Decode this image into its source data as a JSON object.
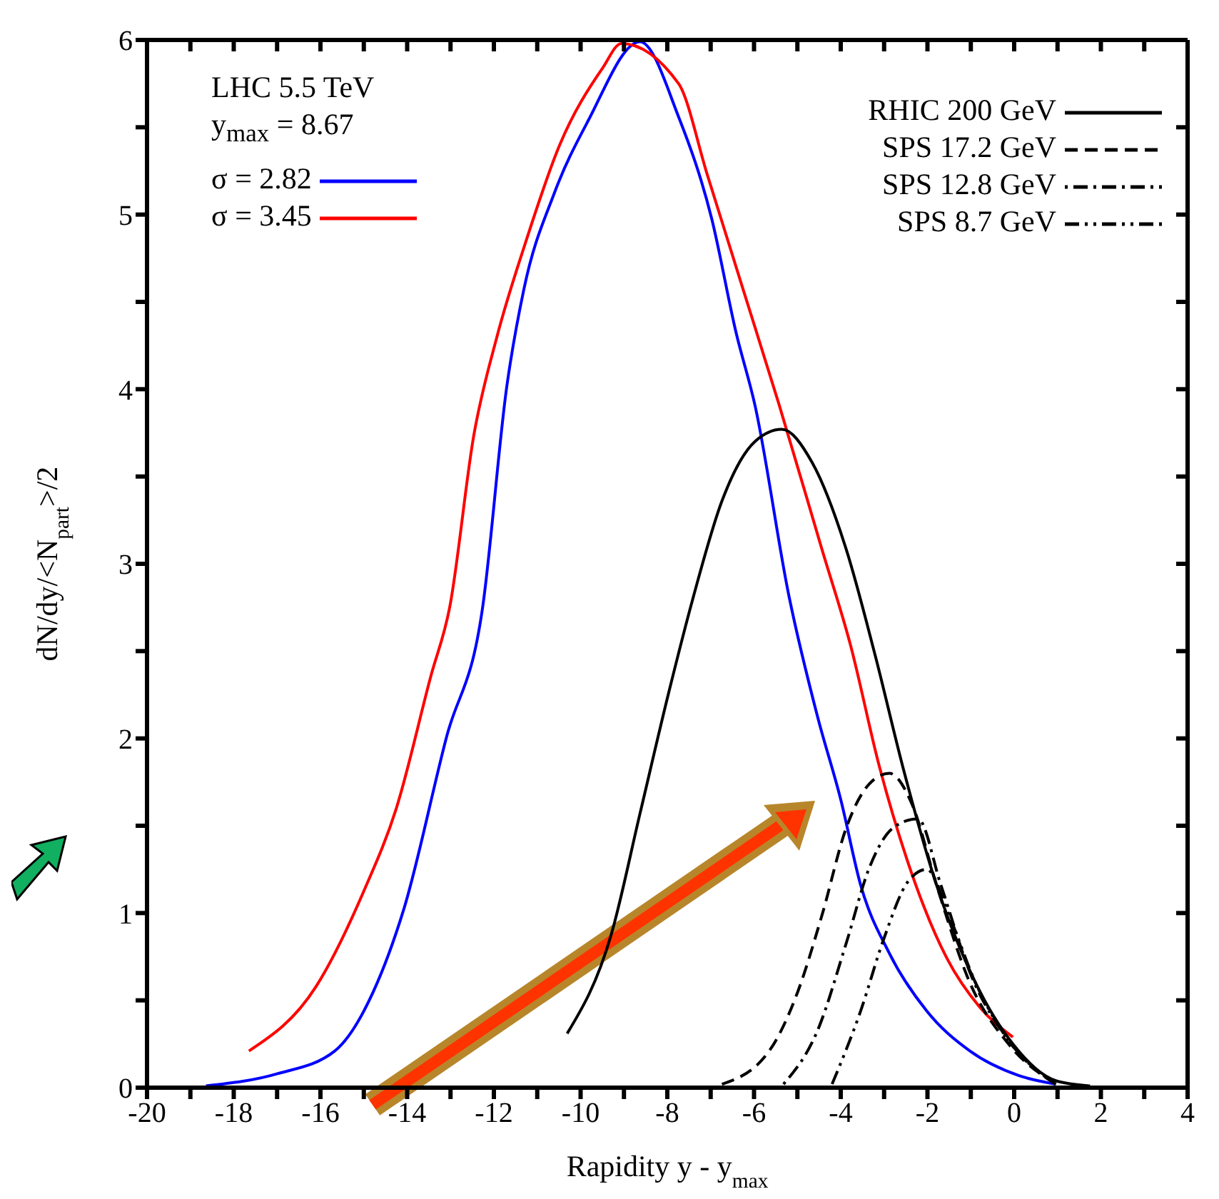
{
  "chart_data": {
    "type": "line",
    "xlabel": "Rapidity y - y$_{max}$",
    "ylabel": "dN/dy/<N$_{part}$>/2",
    "annotations": [
      "LHC 5.5 TeV",
      "y$_{max}$ = 8.67"
    ],
    "xlim": [
      -20,
      4
    ],
    "ylim": [
      0,
      6
    ],
    "xticks": [
      -20,
      {
        "value": -19,
        "label": null
      },
      -18,
      {
        "value": -17,
        "label": null
      },
      -16,
      {
        "value": -15,
        "label": null
      },
      -14,
      {
        "value": -13,
        "label": null
      },
      -12,
      {
        "value": -11,
        "label": null
      },
      -10,
      {
        "value": -9,
        "label": null
      },
      -8,
      {
        "value": -7,
        "label": null
      },
      -6,
      {
        "value": -5,
        "label": null
      },
      -4,
      {
        "value": -3,
        "label": null
      },
      -2,
      {
        "value": -1,
        "label": null
      },
      0,
      {
        "value": 1,
        "label": null
      },
      2,
      {
        "value": 3,
        "label": null
      },
      4
    ],
    "yticks": [
      0,
      {
        "value": 0.5,
        "label": null
      },
      1,
      {
        "value": 1.5,
        "label": null
      },
      2,
      {
        "value": 2.5,
        "label": null
      },
      3,
      {
        "value": 3.5,
        "label": null
      },
      4,
      {
        "value": 4.5,
        "label": null
      },
      5,
      {
        "value": 5.5,
        "label": null
      },
      6
    ],
    "legend": "top",
    "marker": "none",
    "series": [
      {
        "name": "σ = 2.82",
        "color": "#0000ff",
        "line_style": "solid",
        "x": [
          -18.64,
          -16.99,
          -15.67,
          -14.78,
          -14.08,
          -13.09,
          -12.26,
          -11.7,
          -11.31,
          -10.61,
          -9.82,
          -8.63,
          -7.74,
          -6.98,
          -6.41,
          -5.98,
          -5.19,
          -4.53,
          -4.0,
          -3.54,
          -2.88,
          -2.02,
          -1.02,
          0.1,
          0.96
        ],
        "values": [
          0.01,
          0.08,
          0.21,
          0.55,
          1.02,
          2.01,
          2.75,
          4.02,
          4.57,
          5.12,
          5.54,
          5.99,
          5.56,
          4.98,
          4.32,
          3.91,
          2.81,
          2.12,
          1.65,
          1.16,
          0.77,
          0.44,
          0.21,
          0.07,
          0.02
        ]
      },
      {
        "name": "σ = 3.45",
        "color": "#ff0000",
        "line_style": "solid",
        "x": [
          -17.65,
          -16.1,
          -15.01,
          -14.25,
          -13.45,
          -13.02,
          -12.46,
          -11.93,
          -11.27,
          -10.48,
          -9.49,
          -9.06,
          -7.74,
          -7.08,
          -6.25,
          -5.42,
          -4.43,
          -3.77,
          -3.11,
          -2.45,
          -1.55,
          -0.79,
          -0.03
        ],
        "values": [
          0.21,
          0.58,
          1.12,
          1.6,
          2.36,
          2.75,
          3.74,
          4.3,
          4.84,
          5.4,
          5.84,
          5.98,
          5.75,
          5.23,
          4.57,
          3.91,
          3.08,
          2.53,
          1.84,
          1.29,
          0.74,
          0.46,
          0.29
        ]
      },
      {
        "name": "RHIC 200 GeV",
        "color": "#000000",
        "line_style": "solid",
        "x": [
          -10.31,
          -9.29,
          -8.63,
          -7.97,
          -7.4,
          -6.74,
          -5.98,
          -5.36,
          -4.66,
          -3.87,
          -3.21,
          -2.55,
          -1.79,
          -0.89,
          -0.03,
          0.96,
          1.75
        ],
        "values": [
          0.31,
          0.88,
          1.57,
          2.26,
          2.81,
          3.36,
          3.7,
          3.77,
          3.58,
          3.08,
          2.48,
          1.82,
          1.16,
          0.6,
          0.25,
          0.04,
          0.01
        ]
      },
      {
        "name": "SPS 17.2 GeV",
        "color": "#000000",
        "line_style": "dashed",
        "x": [
          -6.74,
          -5.65,
          -4.99,
          -4.43,
          -3.87,
          -3.34,
          -2.88,
          -2.35,
          -1.79,
          -1.02,
          -0.13,
          0.96
        ],
        "values": [
          0.02,
          0.21,
          0.55,
          0.99,
          1.49,
          1.74,
          1.8,
          1.62,
          1.16,
          0.6,
          0.25,
          0.02
        ]
      },
      {
        "name": "SPS 12.8 GeV",
        "color": "#000000",
        "line_style": "dashdot",
        "x": [
          -5.32,
          -4.53,
          -3.87,
          -3.34,
          -2.78,
          -2.22,
          -1.69,
          -1.02,
          -0.13,
          0.96
        ],
        "values": [
          0.02,
          0.33,
          0.83,
          1.26,
          1.49,
          1.54,
          1.16,
          0.66,
          0.27,
          0.02
        ]
      },
      {
        "name": "SPS 8.7 GeV",
        "color": "#000000",
        "line_style": "dashdotdot",
        "x": [
          -4.2,
          -3.54,
          -3.01,
          -2.45,
          -2.02,
          -1.46,
          -0.89,
          -0.13,
          0.96
        ],
        "values": [
          0.02,
          0.44,
          0.85,
          1.18,
          1.25,
          0.96,
          0.6,
          0.27,
          0.02
        ]
      }
    ]
  }
}
